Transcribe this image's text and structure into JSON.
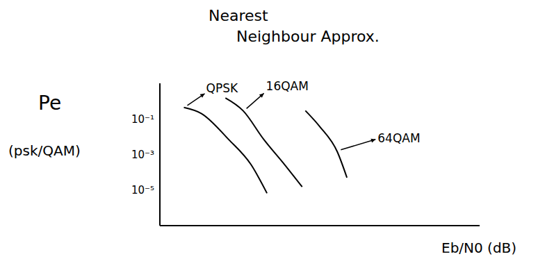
{
  "chart_data": {
    "type": "line",
    "title": "Nearest Neighbour Approx.",
    "xlabel": "Eb/N0 (dB)",
    "ylabel": "Pe (psk/QAM)",
    "xlim": [
      0,
      20
    ],
    "ylim": [
      1e-07,
      10
    ],
    "yticks": [
      {
        "value": 0.1,
        "label": "10⁻¹"
      },
      {
        "value": 0.001,
        "label": "10⁻³"
      },
      {
        "value": 1e-05,
        "label": "10⁻⁵"
      }
    ],
    "log": "y",
    "grid": false,
    "tick_labels": "y",
    "series": [
      {
        "name": "QPSK",
        "color": "#000000",
        "x": [
          1.5,
          2.6,
          4.3,
          5.7,
          6.7
        ],
        "values": [
          0.44,
          0.2,
          0.007,
          0.00027,
          6.6e-06
        ]
      },
      {
        "name": "16QAM",
        "color": "#000000",
        "x": [
          4.1,
          5.2,
          6.5,
          7.8,
          8.9
        ],
        "values": [
          1.5,
          0.29,
          0.007,
          0.00027,
          1.5e-05
        ]
      },
      {
        "name": "64QAM",
        "color": "#000000",
        "x": [
          9.1,
          10,
          11.1,
          11.7
        ],
        "values": [
          0.29,
          0.037,
          0.0014,
          5e-05
        ]
      }
    ]
  }
}
